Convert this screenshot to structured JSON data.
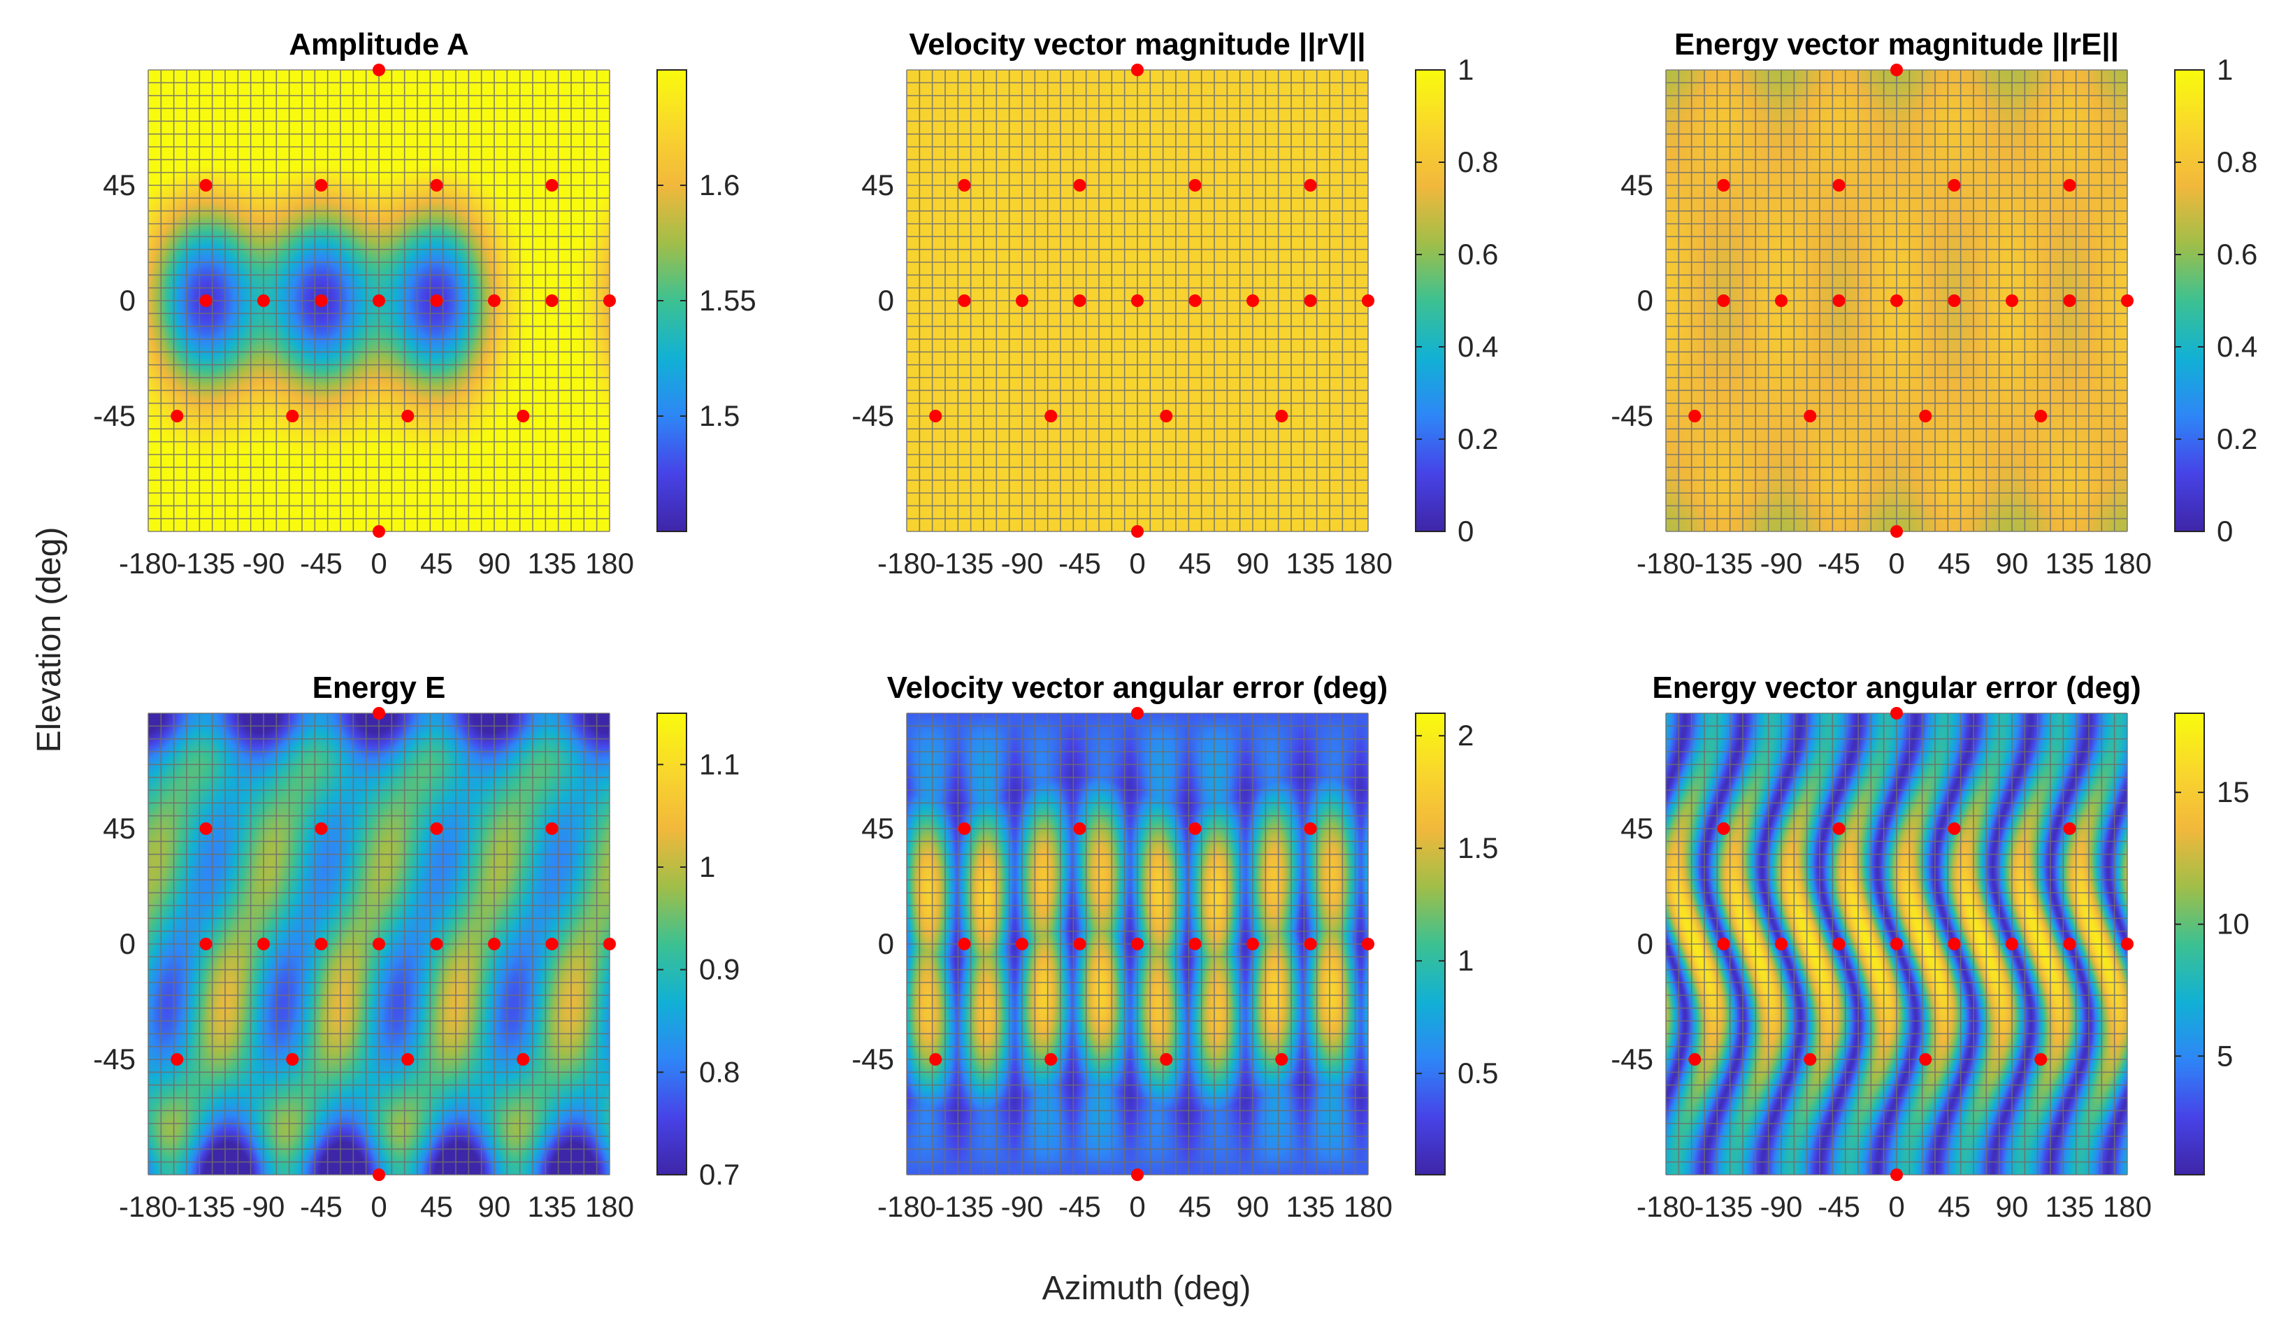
{
  "figure": {
    "xlabel": "Azimuth (deg)",
    "ylabel": "Elevation (deg)"
  },
  "colors": {
    "background": "#ffffff",
    "grid": "#6e6e6e",
    "marker": "#ff0000",
    "parula": [
      "#3e26a8",
      "#4744e8",
      "#2e87f7",
      "#12b1d5",
      "#3dc192",
      "#a1be49",
      "#f2b83c",
      "#f9d72d",
      "#f9fb0e"
    ]
  },
  "chart_data": [
    {
      "type": "heatmap",
      "title": "Amplitude A",
      "xticks": [
        -180,
        -135,
        -90,
        -45,
        0,
        45,
        90,
        135,
        180
      ],
      "xtick_labels": [
        "-180",
        "-135",
        "-90",
        "-45",
        "0",
        "45",
        "90",
        "135",
        "180"
      ],
      "yticks": [
        -45,
        0,
        45
      ],
      "ytick_labels": [
        "-45",
        "0",
        "45"
      ],
      "xlim": [
        -180,
        180
      ],
      "ylim": [
        -90,
        90
      ],
      "clim": [
        1.45,
        1.65
      ],
      "cbar_ticks": [
        1.5,
        1.55,
        1.6
      ],
      "cbar_labels": [
        "1.5",
        "1.55",
        "1.6"
      ],
      "field": "amplitude"
    },
    {
      "type": "heatmap",
      "title": "Velocity vector magnitude ||rV||",
      "xticks": [
        -180,
        -135,
        -90,
        -45,
        0,
        45,
        90,
        135,
        180
      ],
      "xtick_labels": [
        "-180",
        "-135",
        "-90",
        "-45",
        "0",
        "45",
        "90",
        "135",
        "180"
      ],
      "yticks": [
        -45,
        0,
        45
      ],
      "ytick_labels": [
        "-45",
        "0",
        "45"
      ],
      "xlim": [
        -180,
        180
      ],
      "ylim": [
        -90,
        90
      ],
      "clim": [
        0,
        1
      ],
      "cbar_ticks": [
        0,
        0.2,
        0.4,
        0.6,
        0.8,
        1
      ],
      "cbar_labels": [
        "0",
        "0.2",
        "0.4",
        "0.6",
        "0.8",
        "1"
      ],
      "field": "rv"
    },
    {
      "type": "heatmap",
      "title": "Energy vector magnitude ||rE||",
      "xticks": [
        -180,
        -135,
        -90,
        -45,
        0,
        45,
        90,
        135,
        180
      ],
      "xtick_labels": [
        "-180",
        "-135",
        "-90",
        "-45",
        "0",
        "45",
        "90",
        "135",
        "180"
      ],
      "yticks": [
        -45,
        0,
        45
      ],
      "ytick_labels": [
        "-45",
        "0",
        "45"
      ],
      "xlim": [
        -180,
        180
      ],
      "ylim": [
        -90,
        90
      ],
      "clim": [
        0,
        1
      ],
      "cbar_ticks": [
        0,
        0.2,
        0.4,
        0.6,
        0.8,
        1
      ],
      "cbar_labels": [
        "0",
        "0.2",
        "0.4",
        "0.6",
        "0.8",
        "1"
      ],
      "field": "re"
    },
    {
      "type": "heatmap",
      "title": "Energy E",
      "xticks": [
        -180,
        -135,
        -90,
        -45,
        0,
        45,
        90,
        135,
        180
      ],
      "xtick_labels": [
        "-180",
        "-135",
        "-90",
        "-45",
        "0",
        "45",
        "90",
        "135",
        "180"
      ],
      "yticks": [
        -45,
        0,
        45
      ],
      "ytick_labels": [
        "-45",
        "0",
        "45"
      ],
      "xlim": [
        -180,
        180
      ],
      "ylim": [
        -90,
        90
      ],
      "clim": [
        0.7,
        1.15
      ],
      "cbar_ticks": [
        0.7,
        0.8,
        0.9,
        1,
        1.1
      ],
      "cbar_labels": [
        "0.7",
        "0.8",
        "0.9",
        "1",
        "1.1"
      ],
      "field": "energy"
    },
    {
      "type": "heatmap",
      "title": "Velocity vector angular error (deg)",
      "xticks": [
        -180,
        -135,
        -90,
        -45,
        0,
        45,
        90,
        135,
        180
      ],
      "xtick_labels": [
        "-180",
        "-135",
        "-90",
        "-45",
        "0",
        "45",
        "90",
        "135",
        "180"
      ],
      "yticks": [
        -45,
        0,
        45
      ],
      "ytick_labels": [
        "-45",
        "0",
        "45"
      ],
      "xlim": [
        -180,
        180
      ],
      "ylim": [
        -90,
        90
      ],
      "clim": [
        0.05,
        2.1
      ],
      "cbar_ticks": [
        0.5,
        1,
        1.5,
        2
      ],
      "cbar_labels": [
        "0.5",
        "1",
        "1.5",
        "2"
      ],
      "field": "verr"
    },
    {
      "type": "heatmap",
      "title": "Energy vector angular error (deg)",
      "xticks": [
        -180,
        -135,
        -90,
        -45,
        0,
        45,
        90,
        135,
        180
      ],
      "xtick_labels": [
        "-180",
        "-135",
        "-90",
        "-45",
        "0",
        "45",
        "90",
        "135",
        "180"
      ],
      "yticks": [
        -45,
        0,
        45
      ],
      "ytick_labels": [
        "-45",
        "0",
        "45"
      ],
      "xlim": [
        -180,
        180
      ],
      "ylim": [
        -90,
        90
      ],
      "clim": [
        0.5,
        18
      ],
      "cbar_ticks": [
        5,
        10,
        15
      ],
      "cbar_labels": [
        "5",
        "10",
        "15"
      ],
      "field": "eerr"
    }
  ],
  "loudspeakers": [
    {
      "az": 0,
      "el": 90
    },
    {
      "az": -135,
      "el": 45
    },
    {
      "az": -45,
      "el": 45
    },
    {
      "az": 45,
      "el": 45
    },
    {
      "az": 135,
      "el": 45
    },
    {
      "az": -135,
      "el": 0
    },
    {
      "az": -90,
      "el": 0
    },
    {
      "az": -45,
      "el": 0
    },
    {
      "az": 0,
      "el": 0
    },
    {
      "az": 45,
      "el": 0
    },
    {
      "az": 90,
      "el": 0
    },
    {
      "az": 135,
      "el": 0
    },
    {
      "az": 180,
      "el": 0
    },
    {
      "az": -157.5,
      "el": -45
    },
    {
      "az": -67.5,
      "el": -45
    },
    {
      "az": 22.5,
      "el": -45
    },
    {
      "az": 112.5,
      "el": -45
    },
    {
      "az": 0,
      "el": -90
    }
  ]
}
